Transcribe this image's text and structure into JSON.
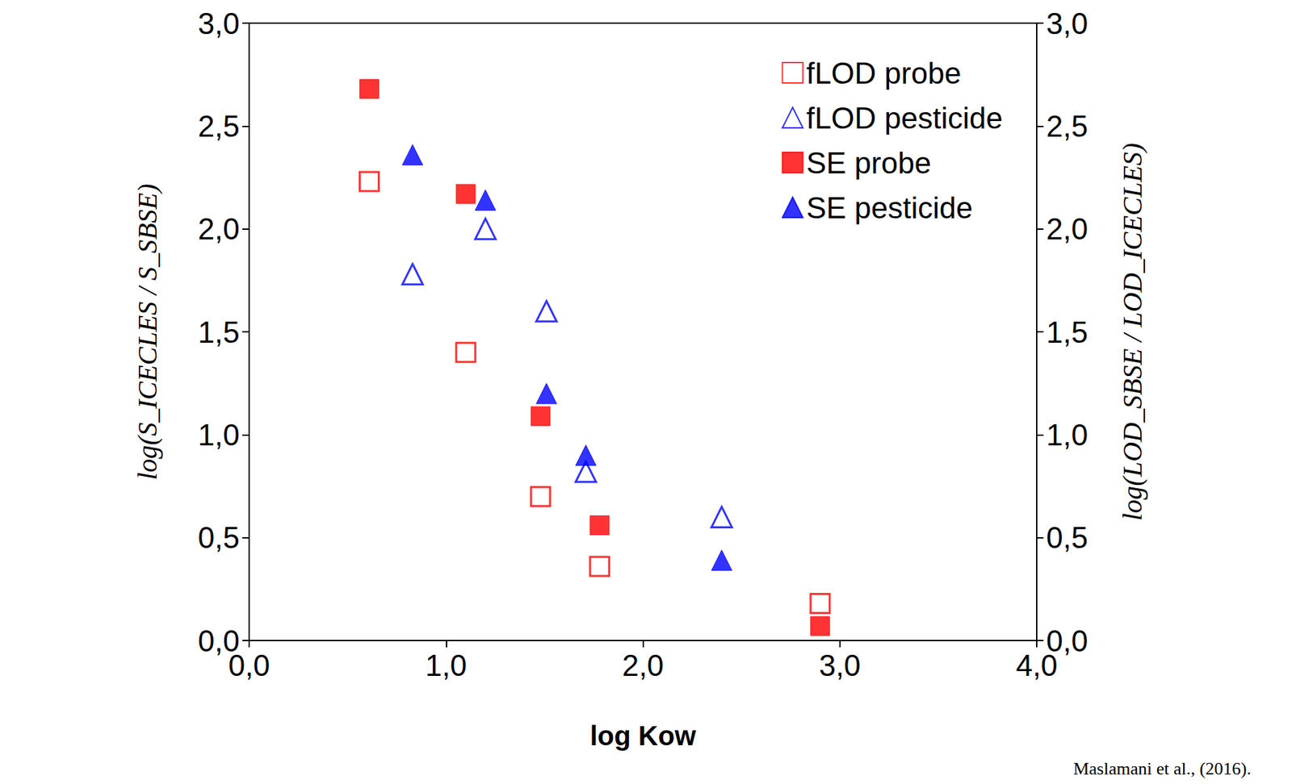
{
  "chart_data": {
    "type": "scatter",
    "x_label": "log Kow",
    "y_label": "log(S_ICECLES / S_SBSE)",
    "y2_label": "log(LOD_SBSE / LOD_ICECLES)",
    "annotation": "Maslamani et al., (2016).",
    "xlim": [
      0,
      4
    ],
    "xticks": [
      {
        "value": 0,
        "label": "0,0"
      },
      {
        "value": 1,
        "label": "1,0"
      },
      {
        "value": 2,
        "label": "2,0"
      },
      {
        "value": 3,
        "label": "3,0"
      },
      {
        "value": 4,
        "label": "4,0"
      }
    ],
    "ylim": [
      0,
      3
    ],
    "yticks": [
      {
        "value": 0,
        "label": "0,0"
      },
      {
        "value": 0.5,
        "label": "0,5"
      },
      {
        "value": 1,
        "label": "1,0"
      },
      {
        "value": 1.5,
        "label": "1,5"
      },
      {
        "value": 2,
        "label": "2,0"
      },
      {
        "value": 2.5,
        "label": "2,5"
      },
      {
        "value": 3,
        "label": "3,0"
      }
    ],
    "y2lim": [
      0,
      3
    ],
    "y2ticks": [
      {
        "value": 0,
        "label": "0,0"
      },
      {
        "value": 0.5,
        "label": "0,5"
      },
      {
        "value": 1,
        "label": "1,0"
      },
      {
        "value": 1.5,
        "label": "1,5"
      },
      {
        "value": 2,
        "label": "2,0"
      },
      {
        "value": 2.5,
        "label": "2,5"
      },
      {
        "value": 3,
        "label": "3,0"
      }
    ],
    "grid": false,
    "legend": "top-right",
    "series": [
      {
        "name": "fLOD probe",
        "color": "#ff0000",
        "marker": "square-open",
        "axis": "y2",
        "x": [
          0.61,
          1.1,
          1.48,
          1.78,
          2.9
        ],
        "values": [
          2.23,
          1.4,
          0.7,
          0.36,
          0.18
        ]
      },
      {
        "name": "fLOD pesticide",
        "color": "#0000ff",
        "marker": "triangle-open",
        "axis": "y2",
        "x": [
          0.83,
          1.2,
          1.51,
          1.71,
          2.4
        ],
        "values": [
          1.78,
          2.0,
          1.6,
          0.82,
          0.6
        ]
      },
      {
        "name": "SE probe",
        "color": "#ff0000",
        "marker": "square",
        "x": [
          0.61,
          1.1,
          1.48,
          1.78,
          2.9
        ],
        "values": [
          2.68,
          2.17,
          1.09,
          0.56,
          0.07
        ]
      },
      {
        "name": "SE pesticide",
        "color": "#0000ff",
        "marker": "triangle",
        "x": [
          0.83,
          1.2,
          1.51,
          1.71,
          2.4
        ],
        "values": [
          2.36,
          2.14,
          1.2,
          0.9,
          0.39
        ]
      }
    ]
  }
}
